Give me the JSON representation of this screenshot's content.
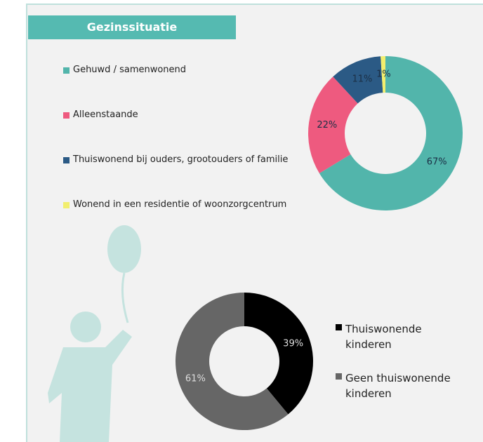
{
  "title": "Gezinssituatie",
  "chart_data": [
    {
      "type": "donut",
      "categories": [
        "Gehuwd / samenwonend",
        "Alleenstaande",
        "Thuiswonend bij ouders, grootouders of familie",
        "Wonend in een residentie of woonzorgcentrum"
      ],
      "values": [
        67,
        22,
        11,
        1
      ],
      "value_labels": [
        "67%",
        "22%",
        "11%",
        "1%"
      ],
      "colors": [
        "#52b5ab",
        "#ee5a7f",
        "#2b5a85",
        "#f2ee6e"
      ]
    },
    {
      "type": "donut",
      "categories": [
        "Thuiswonende kinderen",
        "Geen thuiswonende kinderen"
      ],
      "values": [
        39,
        61
      ],
      "value_labels": [
        "39%",
        "61%"
      ],
      "colors": [
        "#000000",
        "#666666"
      ]
    }
  ]
}
